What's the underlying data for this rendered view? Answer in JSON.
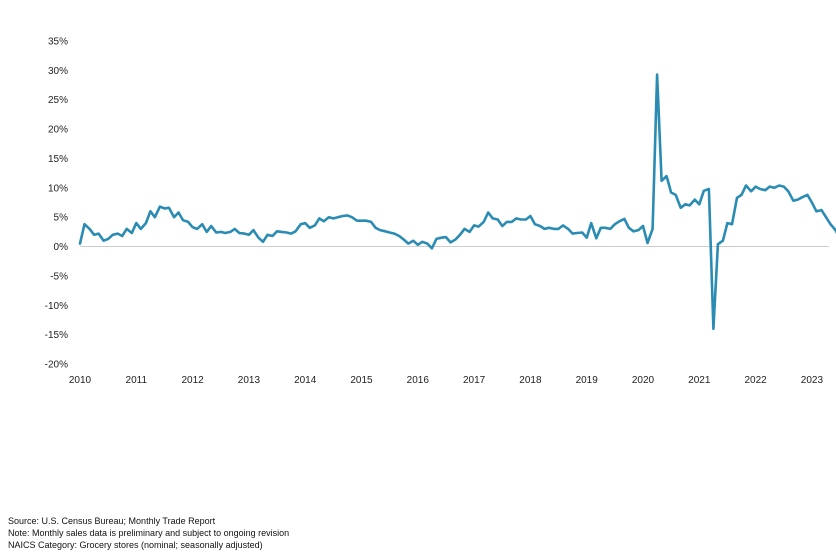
{
  "chart_data": {
    "type": "line",
    "title": "",
    "xlabel": "",
    "ylabel": "",
    "xlim": [
      2010,
      2023.6
    ],
    "ylim": [
      -20,
      35
    ],
    "grid": false,
    "x_ticks": [
      "2010",
      "2011",
      "2012",
      "2013",
      "2014",
      "2015",
      "2016",
      "2017",
      "2018",
      "2019",
      "2020",
      "2021",
      "2022",
      "2023"
    ],
    "y_ticks": [
      "35%",
      "30%",
      "25%",
      "20%",
      "15%",
      "10%",
      "5%",
      "0%",
      "-5%",
      "-10%",
      "-15%",
      "-20%"
    ],
    "line_color": "#2b8cb3",
    "series": [
      {
        "points": [
          [
            2010.0,
            0.5
          ],
          [
            2010.08,
            3.8
          ],
          [
            2010.17,
            3.0
          ],
          [
            2010.25,
            2.0
          ],
          [
            2010.33,
            2.2
          ],
          [
            2010.42,
            1.0
          ],
          [
            2010.5,
            1.3
          ],
          [
            2010.58,
            2.0
          ],
          [
            2010.67,
            2.2
          ],
          [
            2010.75,
            1.8
          ],
          [
            2010.83,
            3.0
          ],
          [
            2010.92,
            2.3
          ],
          [
            2011.0,
            4.0
          ],
          [
            2011.08,
            3.0
          ],
          [
            2011.17,
            4.0
          ],
          [
            2011.25,
            6.0
          ],
          [
            2011.33,
            5.0
          ],
          [
            2011.42,
            6.8
          ],
          [
            2011.5,
            6.5
          ],
          [
            2011.58,
            6.6
          ],
          [
            2011.67,
            5.0
          ],
          [
            2011.75,
            5.8
          ],
          [
            2011.83,
            4.5
          ],
          [
            2011.92,
            4.2
          ],
          [
            2012.0,
            3.3
          ],
          [
            2012.08,
            3.0
          ],
          [
            2012.17,
            3.8
          ],
          [
            2012.25,
            2.5
          ],
          [
            2012.33,
            3.5
          ],
          [
            2012.42,
            2.4
          ],
          [
            2012.5,
            2.5
          ],
          [
            2012.58,
            2.3
          ],
          [
            2012.67,
            2.5
          ],
          [
            2012.75,
            3.0
          ],
          [
            2012.83,
            2.3
          ],
          [
            2012.92,
            2.2
          ],
          [
            2013.0,
            2.0
          ],
          [
            2013.08,
            2.8
          ],
          [
            2013.17,
            1.5
          ],
          [
            2013.25,
            0.8
          ],
          [
            2013.33,
            2.0
          ],
          [
            2013.42,
            1.8
          ],
          [
            2013.5,
            2.6
          ],
          [
            2013.58,
            2.5
          ],
          [
            2013.67,
            2.4
          ],
          [
            2013.75,
            2.2
          ],
          [
            2013.83,
            2.6
          ],
          [
            2013.92,
            3.8
          ],
          [
            2014.0,
            4.0
          ],
          [
            2014.08,
            3.2
          ],
          [
            2014.17,
            3.6
          ],
          [
            2014.25,
            4.8
          ],
          [
            2014.33,
            4.3
          ],
          [
            2014.42,
            5.0
          ],
          [
            2014.5,
            4.8
          ],
          [
            2014.58,
            5.0
          ],
          [
            2014.67,
            5.2
          ],
          [
            2014.75,
            5.3
          ],
          [
            2014.83,
            5.0
          ],
          [
            2014.92,
            4.4
          ],
          [
            2015.0,
            4.4
          ],
          [
            2015.08,
            4.4
          ],
          [
            2015.17,
            4.2
          ],
          [
            2015.25,
            3.2
          ],
          [
            2015.33,
            2.8
          ],
          [
            2015.42,
            2.6
          ],
          [
            2015.5,
            2.4
          ],
          [
            2015.58,
            2.2
          ],
          [
            2015.67,
            1.8
          ],
          [
            2015.75,
            1.2
          ],
          [
            2015.83,
            0.5
          ],
          [
            2015.92,
            1.0
          ],
          [
            2016.0,
            0.3
          ],
          [
            2016.08,
            0.8
          ],
          [
            2016.17,
            0.5
          ],
          [
            2016.25,
            -0.3
          ],
          [
            2016.33,
            1.3
          ],
          [
            2016.42,
            1.5
          ],
          [
            2016.5,
            1.6
          ],
          [
            2016.58,
            0.7
          ],
          [
            2016.67,
            1.2
          ],
          [
            2016.75,
            2.0
          ],
          [
            2016.83,
            3.0
          ],
          [
            2016.92,
            2.5
          ],
          [
            2017.0,
            3.6
          ],
          [
            2017.08,
            3.4
          ],
          [
            2017.17,
            4.2
          ],
          [
            2017.25,
            5.8
          ],
          [
            2017.33,
            4.8
          ],
          [
            2017.42,
            4.6
          ],
          [
            2017.5,
            3.5
          ],
          [
            2017.58,
            4.2
          ],
          [
            2017.67,
            4.2
          ],
          [
            2017.75,
            4.8
          ],
          [
            2017.83,
            4.6
          ],
          [
            2017.92,
            4.6
          ],
          [
            2018.0,
            5.2
          ],
          [
            2018.08,
            3.8
          ],
          [
            2018.17,
            3.5
          ],
          [
            2018.25,
            3.0
          ],
          [
            2018.33,
            3.2
          ],
          [
            2018.42,
            3.0
          ],
          [
            2018.5,
            3.0
          ],
          [
            2018.58,
            3.6
          ],
          [
            2018.67,
            3.0
          ],
          [
            2018.75,
            2.2
          ],
          [
            2018.83,
            2.3
          ],
          [
            2018.92,
            2.4
          ],
          [
            2019.0,
            1.5
          ],
          [
            2019.08,
            4.0
          ],
          [
            2019.17,
            1.4
          ],
          [
            2019.25,
            3.2
          ],
          [
            2019.33,
            3.2
          ],
          [
            2019.42,
            3.0
          ],
          [
            2019.5,
            3.8
          ],
          [
            2019.58,
            4.3
          ],
          [
            2019.67,
            4.7
          ],
          [
            2019.75,
            3.2
          ],
          [
            2019.83,
            2.6
          ],
          [
            2019.92,
            2.8
          ],
          [
            2020.0,
            3.5
          ],
          [
            2020.08,
            0.6
          ],
          [
            2020.17,
            3.0
          ],
          [
            2020.25,
            29.3
          ],
          [
            2020.33,
            11.2
          ],
          [
            2020.42,
            12.0
          ],
          [
            2020.5,
            9.2
          ],
          [
            2020.58,
            8.8
          ],
          [
            2020.67,
            6.6
          ],
          [
            2020.75,
            7.2
          ],
          [
            2020.83,
            7.0
          ],
          [
            2020.92,
            8.0
          ],
          [
            2021.0,
            7.2
          ],
          [
            2021.08,
            9.5
          ],
          [
            2021.17,
            9.8
          ],
          [
            2021.25,
            -14.0
          ],
          [
            2021.33,
            0.4
          ],
          [
            2021.42,
            1.0
          ],
          [
            2021.5,
            4.0
          ],
          [
            2021.58,
            3.8
          ],
          [
            2021.67,
            8.3
          ],
          [
            2021.75,
            8.8
          ],
          [
            2021.83,
            10.4
          ],
          [
            2021.92,
            9.4
          ],
          [
            2022.0,
            10.2
          ],
          [
            2022.08,
            9.8
          ],
          [
            2022.17,
            9.6
          ],
          [
            2022.25,
            10.2
          ],
          [
            2022.33,
            10.0
          ],
          [
            2022.42,
            10.4
          ],
          [
            2022.5,
            10.2
          ],
          [
            2022.58,
            9.4
          ],
          [
            2022.67,
            7.8
          ],
          [
            2022.75,
            8.0
          ],
          [
            2022.83,
            8.4
          ],
          [
            2022.92,
            8.8
          ],
          [
            2023.0,
            7.5
          ],
          [
            2023.08,
            6.0
          ],
          [
            2023.17,
            6.2
          ],
          [
            2023.25,
            5.0
          ],
          [
            2023.33,
            3.8
          ],
          [
            2023.42,
            2.8
          ],
          [
            2023.5,
            1.2
          ],
          [
            2023.58,
            2.3
          ]
        ]
      }
    ]
  },
  "notes": {
    "source": "Source: U.S. Census Bureau; Monthly Trade Report",
    "note": "Note: Monthly sales data is preliminary and subject to ongoing revision",
    "category": "NAICS Category: Grocery stores (nominal; seasonally adjusted)"
  }
}
